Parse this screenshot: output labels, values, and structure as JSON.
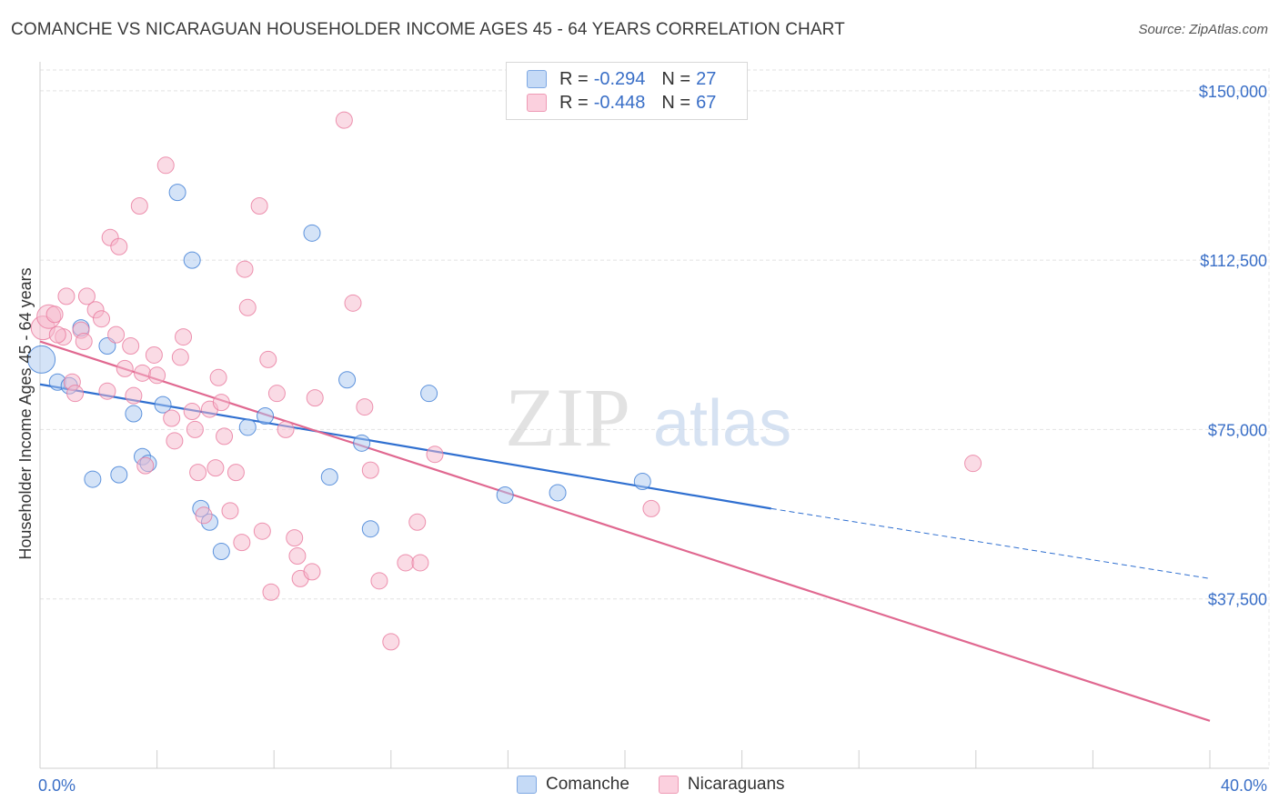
{
  "header": {
    "title": "COMANCHE VS NICARAGUAN HOUSEHOLDER INCOME AGES 45 - 64 YEARS CORRELATION CHART",
    "source": "Source: ZipAtlas.com"
  },
  "watermark": {
    "zip": "ZIP",
    "atlas": "atlas"
  },
  "legend": {
    "rows": [
      {
        "r_label": "R = ",
        "r_value": "-0.294",
        "n_label": "N = ",
        "n_value": "27",
        "color": "#a9c7f0"
      },
      {
        "r_label": "R = ",
        "r_value": "-0.448",
        "n_label": "N = ",
        "n_value": "67",
        "color": "#f6b8cb"
      }
    ]
  },
  "bottom_legend": [
    "Comanche",
    "Nicaraguans"
  ],
  "chart_data": {
    "type": "scatter",
    "title": "COMANCHE VS NICARAGUAN HOUSEHOLDER INCOME AGES 45 - 64 YEARS CORRELATION CHART",
    "xlabel": "",
    "ylabel": "Householder Income Ages 45 - 64 years",
    "xlim": [
      0,
      40
    ],
    "ylim": [
      0,
      155000
    ],
    "x_tick_labels": [
      "0.0%",
      "40.0%"
    ],
    "y_ticks": [
      37500,
      75000,
      112500,
      150000
    ],
    "y_tick_labels": [
      "$37,500",
      "$75,000",
      "$112,500",
      "$150,000"
    ],
    "grid": true,
    "legend_position": "top-center",
    "series": [
      {
        "name": "Comanche",
        "color": "#a9c7f0",
        "stroke": "#3a7bd5",
        "trend": {
          "x_start": 0,
          "y_start": 85000,
          "x_solid_end": 25,
          "y_solid_end": 57500,
          "x_dash_end": 40,
          "y_dash_end": 42000,
          "color": "#2f6fd0"
        },
        "points": [
          [
            0.05,
            90500
          ],
          [
            0.6,
            85500
          ],
          [
            1.0,
            84700
          ],
          [
            1.4,
            97500
          ],
          [
            1.8,
            64000
          ],
          [
            2.3,
            93500
          ],
          [
            2.7,
            65000
          ],
          [
            3.2,
            78500
          ],
          [
            3.5,
            69000
          ],
          [
            3.7,
            67500
          ],
          [
            4.2,
            80500
          ],
          [
            4.7,
            127500
          ],
          [
            5.2,
            112500
          ],
          [
            5.5,
            57500
          ],
          [
            5.8,
            54500
          ],
          [
            6.2,
            48000
          ],
          [
            7.1,
            75500
          ],
          [
            7.7,
            78000
          ],
          [
            9.3,
            118500
          ],
          [
            9.9,
            64500
          ],
          [
            10.5,
            86000
          ],
          [
            11.0,
            72000
          ],
          [
            11.3,
            53000
          ],
          [
            13.3,
            83000
          ],
          [
            15.9,
            60500
          ],
          [
            17.7,
            61000
          ],
          [
            20.6,
            63500
          ]
        ]
      },
      {
        "name": "Nicaraguans",
        "color": "#f6b8cb",
        "stroke": "#e8789c",
        "trend": {
          "x_start": 0,
          "y_start": 94500,
          "x_end": 40,
          "y_end": 10500,
          "color": "#e06890"
        },
        "points": [
          [
            0.1,
            97500
          ],
          [
            0.3,
            100000
          ],
          [
            0.5,
            100500
          ],
          [
            0.8,
            95500
          ],
          [
            0.9,
            104500
          ],
          [
            1.1,
            85500
          ],
          [
            1.2,
            83000
          ],
          [
            1.4,
            97000
          ],
          [
            1.5,
            94500
          ],
          [
            1.6,
            104500
          ],
          [
            1.9,
            101500
          ],
          [
            2.1,
            99500
          ],
          [
            2.3,
            83500
          ],
          [
            2.4,
            117500
          ],
          [
            2.6,
            96000
          ],
          [
            2.7,
            115500
          ],
          [
            2.9,
            88500
          ],
          [
            3.1,
            93500
          ],
          [
            3.2,
            82500
          ],
          [
            3.4,
            124500
          ],
          [
            3.5,
            87500
          ],
          [
            3.6,
            67000
          ],
          [
            3.9,
            91500
          ],
          [
            4.0,
            87000
          ],
          [
            4.3,
            133500
          ],
          [
            4.5,
            77500
          ],
          [
            4.6,
            72500
          ],
          [
            4.8,
            91000
          ],
          [
            4.9,
            95500
          ],
          [
            5.2,
            79000
          ],
          [
            5.3,
            75000
          ],
          [
            5.4,
            65500
          ],
          [
            5.6,
            56000
          ],
          [
            5.8,
            79500
          ],
          [
            6.0,
            66500
          ],
          [
            6.1,
            86500
          ],
          [
            6.2,
            81000
          ],
          [
            6.3,
            73500
          ],
          [
            6.5,
            57000
          ],
          [
            6.7,
            65500
          ],
          [
            6.9,
            50000
          ],
          [
            7.0,
            110500
          ],
          [
            7.1,
            102000
          ],
          [
            7.5,
            124500
          ],
          [
            7.6,
            52500
          ],
          [
            7.8,
            90500
          ],
          [
            7.9,
            39000
          ],
          [
            8.1,
            83000
          ],
          [
            8.4,
            75000
          ],
          [
            8.7,
            51000
          ],
          [
            8.8,
            47000
          ],
          [
            8.9,
            42000
          ],
          [
            9.3,
            43500
          ],
          [
            9.4,
            82000
          ],
          [
            10.4,
            143500
          ],
          [
            10.7,
            103000
          ],
          [
            11.1,
            80000
          ],
          [
            11.3,
            66000
          ],
          [
            11.6,
            41500
          ],
          [
            12.0,
            28000
          ],
          [
            12.5,
            45500
          ],
          [
            12.9,
            54500
          ],
          [
            13.0,
            45500
          ],
          [
            13.5,
            69500
          ],
          [
            20.9,
            57500
          ],
          [
            31.9,
            67500
          ],
          [
            0.6,
            96000
          ]
        ]
      }
    ]
  }
}
